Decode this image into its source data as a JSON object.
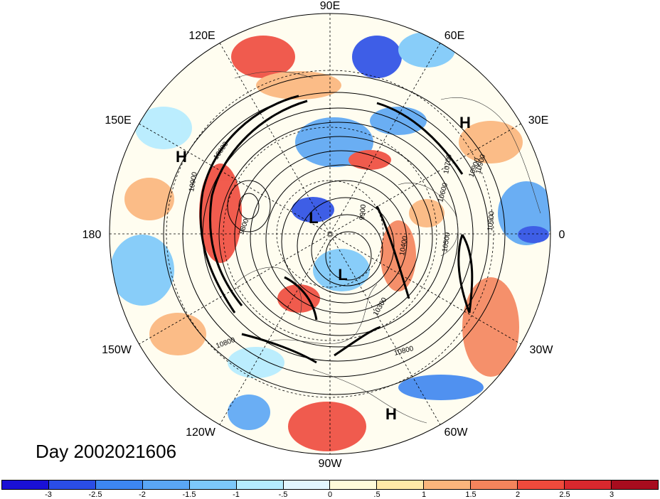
{
  "map": {
    "projection": "north-polar-stereographic",
    "longitude_labels": [
      {
        "text": "90E",
        "lon": 90
      },
      {
        "text": "60E",
        "lon": 60
      },
      {
        "text": "30E",
        "lon": 30
      },
      {
        "text": "0",
        "lon": 0
      },
      {
        "text": "30W",
        "lon": -30
      },
      {
        "text": "60W",
        "lon": -60
      },
      {
        "text": "90W",
        "lon": -90
      },
      {
        "text": "120W",
        "lon": -120
      },
      {
        "text": "150W",
        "lon": -150
      },
      {
        "text": "180",
        "lon": 180
      },
      {
        "text": "150E",
        "lon": 150
      },
      {
        "text": "120E",
        "lon": 120
      }
    ],
    "contour_labels": [
      "10900",
      "10800",
      "9800",
      "10900",
      "10600",
      "10500",
      "10400",
      "10300",
      "10900",
      "10800",
      "10900",
      "10700",
      "10800",
      "9900"
    ],
    "pressure_centers": [
      "H",
      "H",
      "L",
      "L",
      "H"
    ]
  },
  "title": {
    "text": "Day 2002021606"
  },
  "colorbar": {
    "colors": [
      "#1a10d6",
      "#2a4de6",
      "#3d86f0",
      "#5aa6f4",
      "#7cc8fa",
      "#b4ecff",
      "#e2f6ff",
      "#fffbd9",
      "#ffe8a8",
      "#fbb57c",
      "#f4845c",
      "#ef4a3c",
      "#d8282e",
      "#a80c1e"
    ],
    "tick_labels": [
      "-3",
      "-2.5",
      "-2",
      "-1.5",
      "-1",
      "-.5",
      "0",
      ".5",
      "1",
      "1.5",
      "2",
      "2.5",
      "3"
    ]
  }
}
